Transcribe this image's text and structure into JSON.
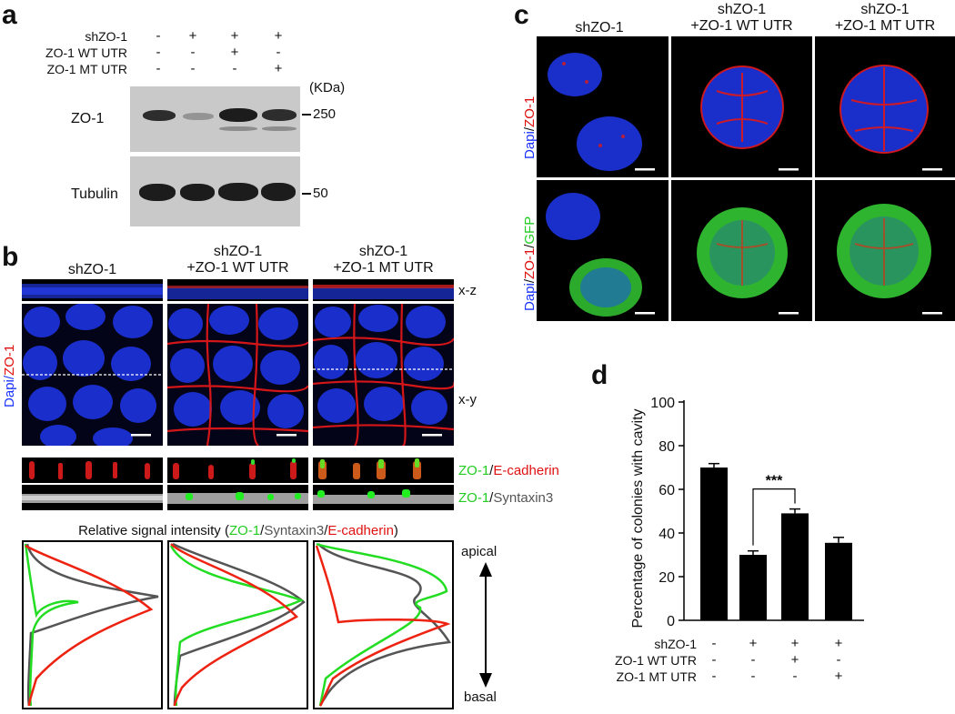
{
  "panel_a": {
    "label": "a",
    "row_labels": [
      "shZO-1",
      "ZO-1 WT UTR",
      "ZO-1 MT UTR"
    ],
    "signs": [
      [
        "-",
        "+",
        "+",
        "+"
      ],
      [
        "-",
        "-",
        "+",
        "-"
      ],
      [
        "-",
        "-",
        "-",
        "+"
      ]
    ],
    "unit": "(KDa)",
    "blots": [
      {
        "name": "ZO-1",
        "marker": "250",
        "band_intensities": [
          0.95,
          0.35,
          1.0,
          0.95
        ]
      },
      {
        "name": "Tubulin",
        "marker": "50",
        "band_intensities": [
          1.0,
          1.0,
          1.0,
          1.0
        ]
      }
    ]
  },
  "panel_b": {
    "label": "b",
    "columns": [
      "shZO-1",
      "shZO-1\n+ZO-1 WT UTR",
      "shZO-1\n+ZO-1 MT UTR"
    ],
    "view_labels": [
      "x-z",
      "x-y"
    ],
    "stain_label": [
      "Dapi",
      "/",
      "ZO-1"
    ],
    "strip_labels": [
      [
        "ZO-1",
        "/",
        "E-cadherin"
      ],
      [
        "ZO-1",
        "/",
        "Syntaxin3"
      ]
    ],
    "profile_title": [
      "Relative signal intensity (",
      "ZO-1",
      "/",
      "Syntaxin3",
      "/",
      "E-cadherin",
      ")"
    ],
    "axis_labels": [
      "apical",
      "basal"
    ],
    "colors": {
      "zo1": "#22dd22",
      "syntaxin3": "#555555",
      "ecadherin": "#ee2211",
      "dapi": "#1a33ff",
      "zo1_stain": "#ee1111"
    }
  },
  "panel_c": {
    "label": "c",
    "columns": [
      "shZO-1",
      "shZO-1\n+ZO-1 WT UTR",
      "shZO-1\n+ZO-1 MT UTR"
    ],
    "row1_label": [
      "Dapi",
      "/",
      "ZO-1"
    ],
    "row2_label": [
      "Dapi",
      "/",
      "ZO-1",
      "/",
      "GFP"
    ]
  },
  "panel_d": {
    "label": "d",
    "significance": "***",
    "row_labels": [
      "shZO-1",
      "ZO-1 WT UTR",
      "ZO-1 MT UTR"
    ],
    "signs": [
      [
        "-",
        "+",
        "+",
        "+"
      ],
      [
        "-",
        "-",
        "+",
        "-"
      ],
      [
        "-",
        "-",
        "-",
        "+"
      ]
    ]
  },
  "chart_data": {
    "type": "bar",
    "categories": [
      "1",
      "2",
      "3",
      "4"
    ],
    "values": [
      70,
      30,
      49,
      35.5
    ],
    "errors": [
      1.8,
      1.8,
      2.0,
      2.5
    ],
    "ylabel": "Percentage of colonies with cavity",
    "ylim": [
      0,
      100
    ],
    "yticks": [
      0,
      20,
      40,
      60,
      80,
      100
    ],
    "significance": {
      "between": [
        1,
        2
      ],
      "label": "***"
    },
    "grid": false
  }
}
